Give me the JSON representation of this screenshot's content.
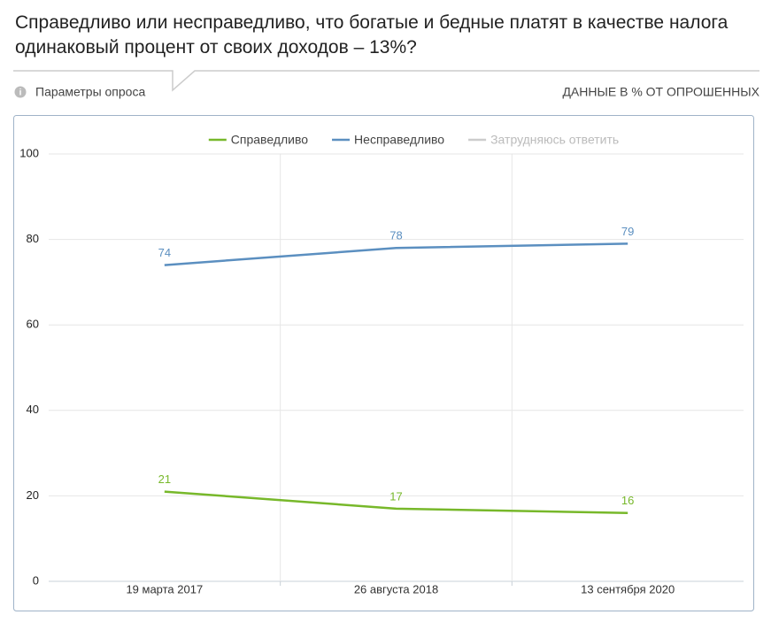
{
  "chart_data": {
    "type": "line",
    "title": "Справедливо или несправедливо, что богатые и бедные платят в качестве налога одинаковый процент от своих доходов – 13%?",
    "survey_params": "Параметры опроса",
    "units_note": "ДАННЫЕ В % ОТ ОПРОШЕННЫХ",
    "categories": [
      "19 марта 2017",
      "26 августа 2018",
      "13 сентября 2020"
    ],
    "series": [
      {
        "name": "Справедливо",
        "color": "#77b82a",
        "values": [
          21,
          17,
          16
        ]
      },
      {
        "name": "Несправедливо",
        "color": "#5b8fc0",
        "values": [
          74,
          78,
          79
        ]
      },
      {
        "name": "Затрудняюсь ответить",
        "color": "#c8c8c8",
        "values": [
          null,
          null,
          null
        ],
        "hidden": true
      }
    ],
    "ylim": [
      0,
      100
    ],
    "yticks": [
      0,
      20,
      40,
      60,
      80,
      100
    ],
    "grid": true,
    "legend": "top"
  }
}
